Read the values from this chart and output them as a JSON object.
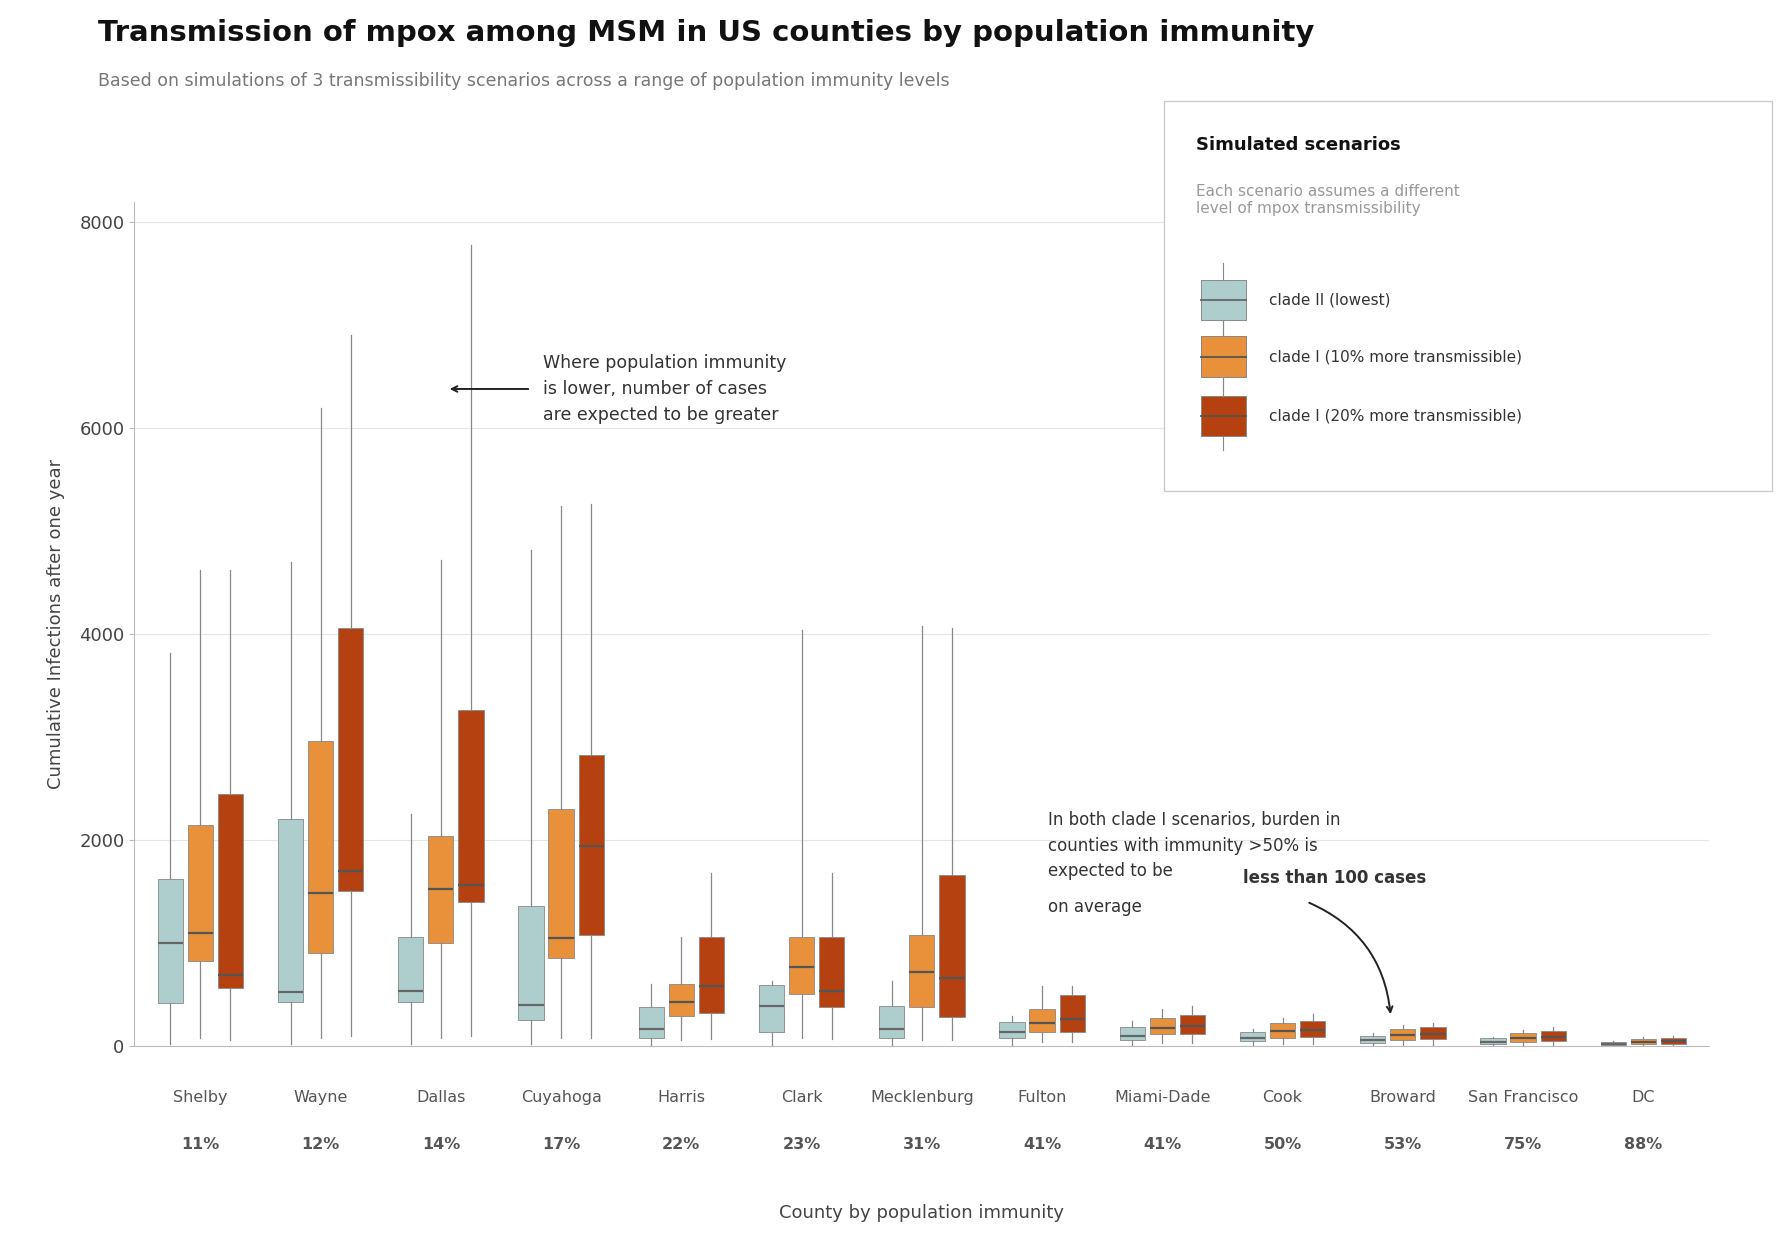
{
  "title": "Transmission of mpox among MSM in US counties by population immunity",
  "subtitle": "Based on simulations of 3 transmissibility scenarios across a range of population immunity levels",
  "xlabel": "County by population immunity",
  "ylabel": "Cumulative Infections after one year",
  "ylim": [
    0,
    8200
  ],
  "yticks": [
    0,
    2000,
    4000,
    6000,
    8000
  ],
  "counties": [
    "Shelby",
    "Wayne",
    "Dallas",
    "Cuyahoga",
    "Harris",
    "Clark",
    "Mecklenburg",
    "Fulton",
    "Miami-Dade",
    "Cook",
    "Broward",
    "San Francisco",
    "DC"
  ],
  "immunity": [
    "11%",
    "12%",
    "14%",
    "17%",
    "22%",
    "23%",
    "31%",
    "41%",
    "41%",
    "50%",
    "53%",
    "75%",
    "88%"
  ],
  "colors": {
    "clade2": {
      "box": "#aecece",
      "whisker": "#888888",
      "median": "#666666"
    },
    "clade1_10": {
      "box": "#e8903a",
      "whisker": "#888888",
      "median": "#555555"
    },
    "clade1_20": {
      "box": "#b54010",
      "whisker": "#888888",
      "median": "#555555"
    }
  },
  "box_data": {
    "clade2": {
      "Shelby": {
        "q1": 420,
        "med": 1000,
        "q3": 1620,
        "whislo": 20,
        "whishi": 3820
      },
      "Wayne": {
        "q1": 430,
        "med": 520,
        "q3": 2200,
        "whislo": 20,
        "whishi": 4700
      },
      "Dallas": {
        "q1": 430,
        "med": 530,
        "q3": 1060,
        "whislo": 20,
        "whishi": 2250
      },
      "Cuyahoga": {
        "q1": 250,
        "med": 400,
        "q3": 1360,
        "whislo": 20,
        "whishi": 4820
      },
      "Harris": {
        "q1": 80,
        "med": 160,
        "q3": 380,
        "whislo": 10,
        "whishi": 600
      },
      "Clark": {
        "q1": 130,
        "med": 390,
        "q3": 590,
        "whislo": 10,
        "whishi": 630
      },
      "Mecklenburg": {
        "q1": 80,
        "med": 160,
        "q3": 390,
        "whislo": 10,
        "whishi": 630
      },
      "Fulton": {
        "q1": 75,
        "med": 130,
        "q3": 230,
        "whislo": 10,
        "whishi": 290
      },
      "Miami-Dade": {
        "q1": 60,
        "med": 100,
        "q3": 180,
        "whislo": 10,
        "whishi": 240
      },
      "Cook": {
        "q1": 45,
        "med": 80,
        "q3": 130,
        "whislo": 5,
        "whishi": 160
      },
      "Broward": {
        "q1": 30,
        "med": 60,
        "q3": 100,
        "whislo": 5,
        "whishi": 120
      },
      "San Francisco": {
        "q1": 20,
        "med": 40,
        "q3": 75,
        "whislo": 3,
        "whishi": 90
      },
      "DC": {
        "q1": 10,
        "med": 20,
        "q3": 40,
        "whislo": 2,
        "whishi": 50
      }
    },
    "clade1_10": {
      "Shelby": {
        "q1": 820,
        "med": 1100,
        "q3": 2140,
        "whislo": 80,
        "whishi": 4620
      },
      "Wayne": {
        "q1": 900,
        "med": 1480,
        "q3": 2960,
        "whislo": 80,
        "whishi": 6200
      },
      "Dallas": {
        "q1": 1000,
        "med": 1520,
        "q3": 2040,
        "whislo": 80,
        "whishi": 4720
      },
      "Cuyahoga": {
        "q1": 850,
        "med": 1050,
        "q3": 2300,
        "whislo": 80,
        "whishi": 5240
      },
      "Harris": {
        "q1": 290,
        "med": 430,
        "q3": 600,
        "whislo": 60,
        "whishi": 1060
      },
      "Clark": {
        "q1": 500,
        "med": 770,
        "q3": 1060,
        "whislo": 80,
        "whishi": 4040
      },
      "Mecklenburg": {
        "q1": 380,
        "med": 720,
        "q3": 1080,
        "whislo": 60,
        "whishi": 4080
      },
      "Fulton": {
        "q1": 130,
        "med": 220,
        "q3": 360,
        "whislo": 40,
        "whishi": 580
      },
      "Miami-Dade": {
        "q1": 110,
        "med": 175,
        "q3": 270,
        "whislo": 25,
        "whishi": 360
      },
      "Cook": {
        "q1": 80,
        "med": 140,
        "q3": 220,
        "whislo": 18,
        "whishi": 270
      },
      "Broward": {
        "q1": 60,
        "med": 105,
        "q3": 165,
        "whislo": 10,
        "whishi": 200
      },
      "San Francisco": {
        "q1": 38,
        "med": 72,
        "q3": 125,
        "whislo": 7,
        "whishi": 155
      },
      "DC": {
        "q1": 18,
        "med": 38,
        "q3": 68,
        "whislo": 4,
        "whishi": 88
      }
    },
    "clade1_20": {
      "Shelby": {
        "q1": 560,
        "med": 690,
        "q3": 2450,
        "whislo": 60,
        "whishi": 4620
      },
      "Wayne": {
        "q1": 1500,
        "med": 1700,
        "q3": 4060,
        "whislo": 100,
        "whishi": 6900
      },
      "Dallas": {
        "q1": 1400,
        "med": 1560,
        "q3": 3260,
        "whislo": 100,
        "whishi": 7780
      },
      "Cuyahoga": {
        "q1": 1080,
        "med": 1940,
        "q3": 2820,
        "whislo": 80,
        "whishi": 5260
      },
      "Harris": {
        "q1": 320,
        "med": 580,
        "q3": 1060,
        "whislo": 70,
        "whishi": 1680
      },
      "Clark": {
        "q1": 380,
        "med": 530,
        "q3": 1060,
        "whislo": 70,
        "whishi": 1680
      },
      "Mecklenburg": {
        "q1": 280,
        "med": 660,
        "q3": 1660,
        "whislo": 60,
        "whishi": 4060
      },
      "Fulton": {
        "q1": 130,
        "med": 260,
        "q3": 490,
        "whislo": 40,
        "whishi": 580
      },
      "Miami-Dade": {
        "q1": 110,
        "med": 195,
        "q3": 300,
        "whislo": 30,
        "whishi": 390
      },
      "Cook": {
        "q1": 85,
        "med": 155,
        "q3": 245,
        "whislo": 20,
        "whishi": 310
      },
      "Broward": {
        "q1": 65,
        "med": 115,
        "q3": 185,
        "whislo": 12,
        "whishi": 225
      },
      "San Francisco": {
        "q1": 42,
        "med": 88,
        "q3": 148,
        "whislo": 8,
        "whishi": 180
      },
      "DC": {
        "q1": 20,
        "med": 45,
        "q3": 80,
        "whislo": 5,
        "whishi": 100
      }
    }
  },
  "legend_title": "Simulated scenarios",
  "legend_subtitle": "Each scenario assumes a different\nlevel of mpox transmissibility",
  "legend_labels": [
    "clade II (lowest)",
    "clade I (10% more transmissible)",
    "clade I (20% more transmissible)"
  ],
  "bg_color": "#ffffff"
}
